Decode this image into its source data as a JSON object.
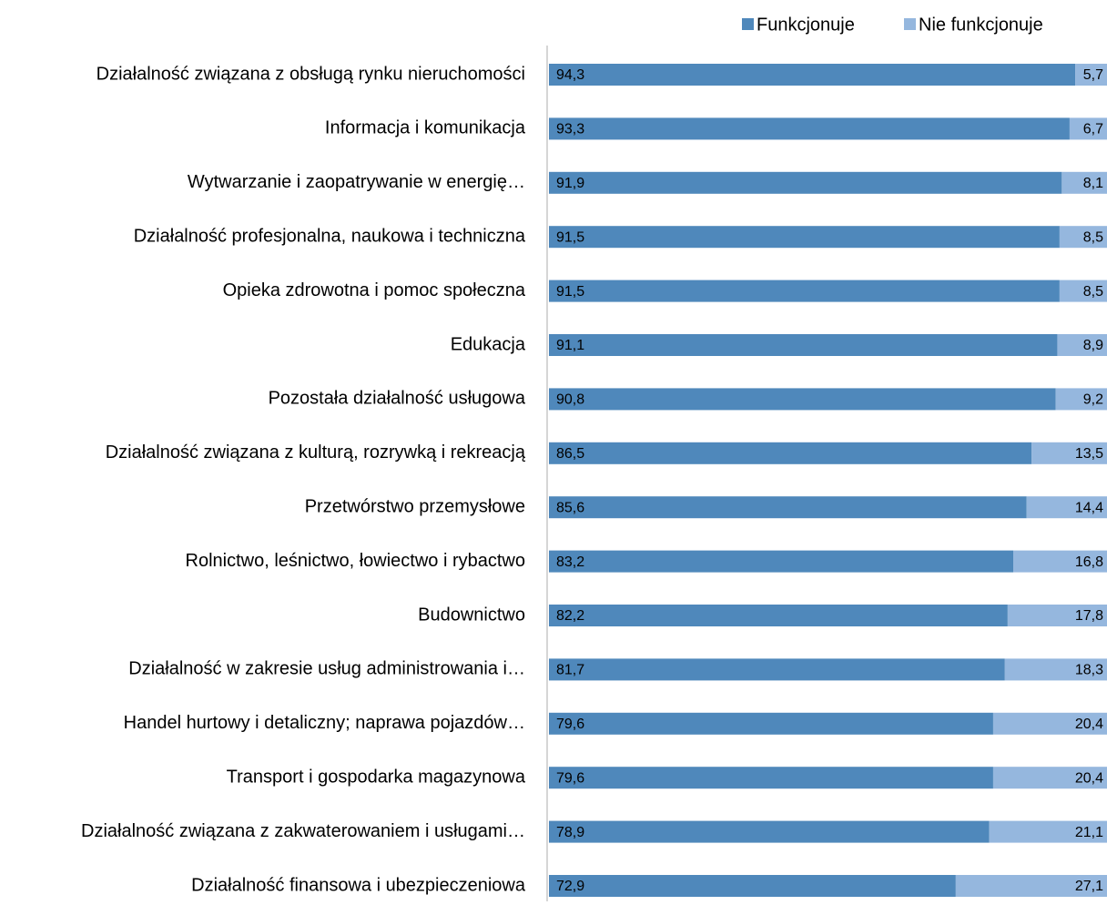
{
  "chart_data": {
    "type": "stacked-bar-horizontal",
    "categories": [
      "Działalność związana z obsługą rynku nieruchomości",
      "Informacja i komunikacja",
      "Wytwarzanie i zaopatrywanie w energię…",
      "Działalność profesjonalna, naukowa i techniczna",
      "Opieka zdrowotna i pomoc społeczna",
      "Edukacja",
      "Pozostała działalność usługowa",
      "Działalność związana z kulturą, rozrywką i rekreacją",
      "Przetwórstwo przemysłowe",
      "Rolnictwo, leśnictwo, łowiectwo i rybactwo",
      "Budownictwo",
      "Działalność w zakresie usług administrowania i…",
      "Handel hurtowy i detaliczny; naprawa pojazdów…",
      "Transport i gospodarka magazynowa",
      "Działalność związana z zakwaterowaniem i usługami…",
      "Działalność finansowa i ubezpieczeniowa"
    ],
    "series": [
      {
        "name": "Funkcjonuje",
        "color": "#4f88bb",
        "values": [
          94.3,
          93.3,
          91.9,
          91.5,
          91.5,
          91.1,
          90.8,
          86.5,
          85.6,
          83.2,
          82.2,
          81.7,
          79.6,
          79.6,
          78.9,
          72.9
        ],
        "value_labels": [
          "94,3",
          "93,3",
          "91,9",
          "91,5",
          "91,5",
          "91,1",
          "90,8",
          "86,5",
          "85,6",
          "83,2",
          "82,2",
          "81,7",
          "79,6",
          "79,6",
          "78,9",
          "72,9"
        ]
      },
      {
        "name": "Nie funkcjonuje",
        "color": "#95b7de",
        "values": [
          5.7,
          6.7,
          8.1,
          8.5,
          8.5,
          8.9,
          9.2,
          13.5,
          14.4,
          16.8,
          17.8,
          18.3,
          20.4,
          20.4,
          21.1,
          27.1
        ],
        "value_labels": [
          "5,7",
          "6,7",
          "8,1",
          "8,5",
          "8,5",
          "8,9",
          "9,2",
          "13,5",
          "14,4",
          "16,8",
          "17,8",
          "18,3",
          "20,4",
          "20,4",
          "21,1",
          "27,1"
        ]
      }
    ],
    "legend": "top-right"
  }
}
